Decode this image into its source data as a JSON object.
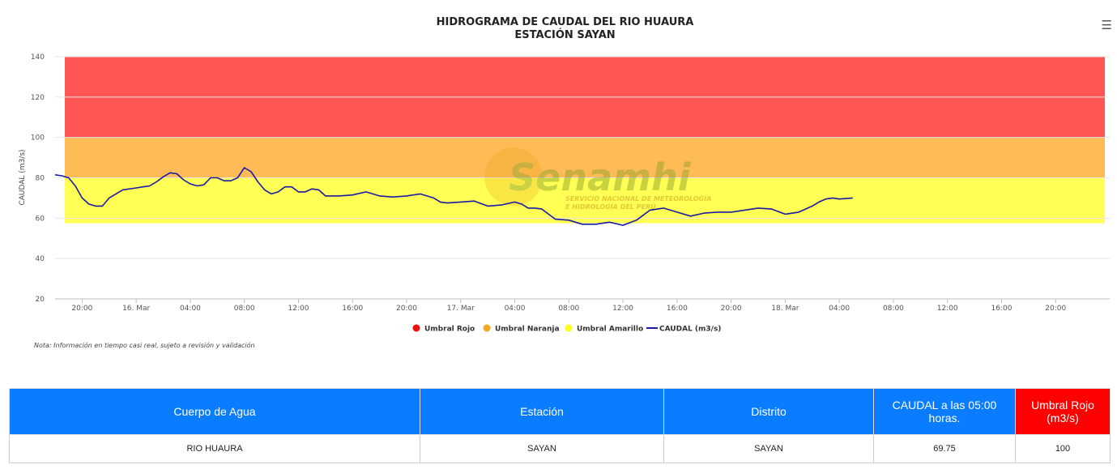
{
  "header": {
    "title_line1": "HIDROGRAMA DE CAUDAL DEL RIO HUAURA",
    "title_line2": "ESTACIÓN SAYAN",
    "menu_icon": "hamburger-menu-icon"
  },
  "watermark": {
    "brand": "Senamhi",
    "subtitle_line1": "SERVICIO NACIONAL DE METEOROLOGÍA",
    "subtitle_line2": "E HIDROLOGÍA DEL PERÚ"
  },
  "note": "Nota: Información en tiempo casi real, sujeto a revisión y validación",
  "chart_data": {
    "type": "line",
    "title": "HIDROGRAMA DE CAUDAL DEL RIO HUAURA",
    "subtitle": "ESTACIÓN SAYAN",
    "xlabel": "",
    "ylabel": "CAUDAL (m3/s)",
    "ylim": [
      20,
      140
    ],
    "yticks": [
      20,
      40,
      60,
      80,
      100,
      120,
      140
    ],
    "x_unit": "hours since 15 Mar 18:00",
    "xlim_hours": [
      0,
      78
    ],
    "xticks": [
      {
        "h": 2,
        "label": "20:00"
      },
      {
        "h": 6,
        "label": "16. Mar"
      },
      {
        "h": 10,
        "label": "04:00"
      },
      {
        "h": 14,
        "label": "08:00"
      },
      {
        "h": 18,
        "label": "12:00"
      },
      {
        "h": 22,
        "label": "16:00"
      },
      {
        "h": 26,
        "label": "20:00"
      },
      {
        "h": 30,
        "label": "17. Mar"
      },
      {
        "h": 34,
        "label": "04:00"
      },
      {
        "h": 38,
        "label": "08:00"
      },
      {
        "h": 42,
        "label": "12:00"
      },
      {
        "h": 46,
        "label": "16:00"
      },
      {
        "h": 50,
        "label": "20:00"
      },
      {
        "h": 54,
        "label": "18. Mar"
      },
      {
        "h": 58,
        "label": "04:00"
      },
      {
        "h": 62,
        "label": "08:00"
      },
      {
        "h": 66,
        "label": "12:00"
      },
      {
        "h": 70,
        "label": "16:00"
      },
      {
        "h": 74,
        "label": "20:00"
      }
    ],
    "bands": [
      {
        "name": "Umbral Rojo",
        "from": 100,
        "to": 140,
        "color": "#ff5555",
        "legend_color": "#ee1111"
      },
      {
        "name": "Umbral Naranja",
        "from": 80,
        "to": 100,
        "color": "#ffbb55",
        "legend_color": "#f5a623"
      },
      {
        "name": "Umbral Amarillo",
        "from": 57.5,
        "to": 80,
        "color": "#ffff55",
        "legend_color": "#ffff22"
      }
    ],
    "series": [
      {
        "name": "CAUDAL (m3/s)",
        "color": "#1a1aa6",
        "x": [
          0,
          0.5,
          1,
          1.5,
          2,
          2.5,
          3,
          3.5,
          4,
          5,
          6,
          6.5,
          7,
          7.5,
          8,
          8.5,
          9,
          9.5,
          10,
          10.5,
          11,
          11.5,
          12,
          12.5,
          13,
          13.5,
          14,
          14.5,
          15,
          15.5,
          16,
          16.5,
          17,
          17.5,
          18,
          18.5,
          19,
          19.5,
          20,
          21,
          22,
          23,
          24,
          25,
          26,
          27,
          28,
          28.5,
          29,
          30,
          31,
          32,
          33,
          34,
          34.5,
          35,
          35.5,
          36,
          37,
          38,
          39,
          40,
          41,
          42,
          43,
          44,
          45,
          46,
          47,
          48,
          49,
          50,
          51,
          52,
          53,
          54,
          55,
          56,
          56.5,
          57,
          57.5,
          58,
          59
        ],
        "y": [
          81.5,
          81,
          80,
          76,
          70,
          67,
          66,
          66,
          70,
          74,
          75,
          75.5,
          76,
          78,
          80.5,
          82.5,
          82,
          79,
          77,
          76,
          76.5,
          80,
          80,
          78.5,
          78.5,
          80,
          85,
          83,
          78,
          74,
          72,
          73,
          75.5,
          75.5,
          73,
          73,
          74.5,
          74,
          71,
          71,
          71.5,
          73,
          71,
          70.5,
          71,
          72,
          70,
          68,
          67.5,
          68,
          68.5,
          66,
          66.5,
          68,
          67,
          65,
          65,
          64.5,
          59.5,
          59,
          57,
          57,
          58,
          56.5,
          59,
          64,
          65,
          63,
          61,
          62.5,
          63,
          63,
          64,
          65,
          64.5,
          62,
          63,
          66,
          68,
          69.5,
          70,
          69.5,
          70
        ]
      }
    ],
    "legend": [
      "Umbral Rojo",
      "Umbral Naranja",
      "Umbral Amarillo",
      "CAUDAL (m3/s)"
    ],
    "legend_position": "bottom",
    "grid": true
  },
  "table": {
    "headers": [
      "Cuerpo de Agua",
      "Estación",
      "Distrito",
      "CAUDAL a las 05:00 horas.",
      "Umbral Rojo (m3/s)"
    ],
    "row": [
      "RIO HUAURA",
      "SAYAN",
      "SAYAN",
      "69.75",
      "100"
    ]
  }
}
